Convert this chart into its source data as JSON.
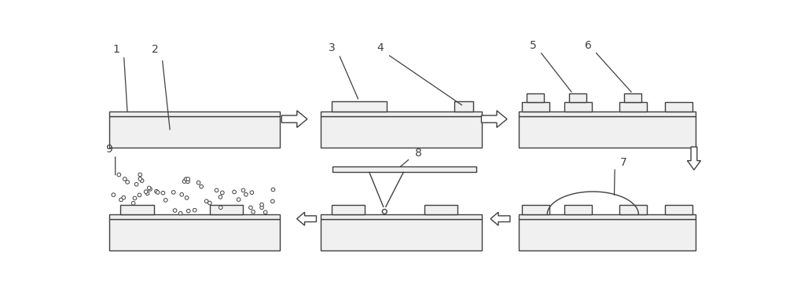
{
  "bg_color": "#ffffff",
  "line_color": "#404040",
  "fill_color": "#f0f0f0",
  "lw": 1.0,
  "fig_w": 10.0,
  "fig_h": 3.91,
  "xlim": [
    0,
    10
  ],
  "ylim": [
    0,
    3.91
  ]
}
